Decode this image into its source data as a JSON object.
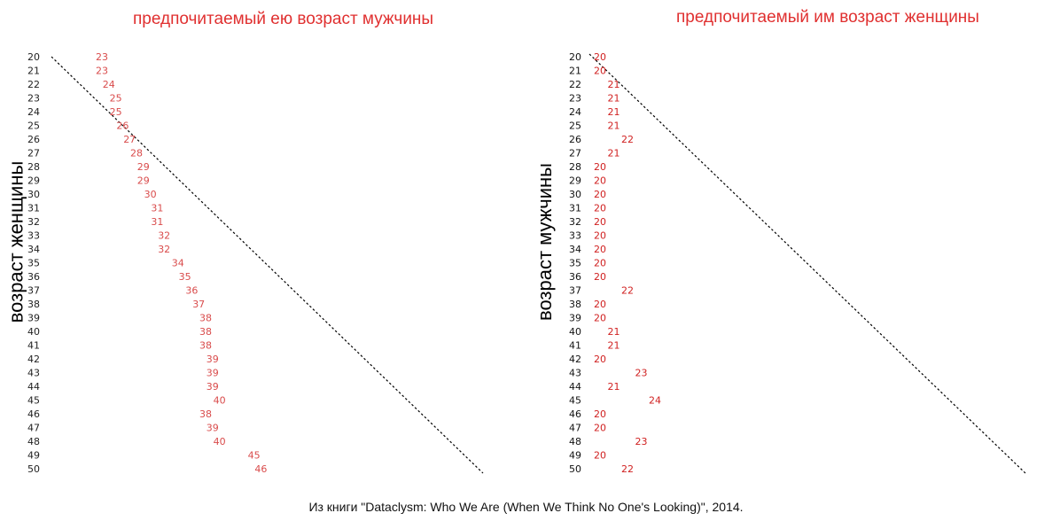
{
  "chart_data": [
    {
      "type": "scatter",
      "title": "предпочитаемый ею возраст мужчины",
      "ylabel": "возраст женщины",
      "y": [
        20,
        21,
        22,
        23,
        24,
        25,
        26,
        27,
        28,
        29,
        30,
        31,
        32,
        33,
        34,
        35,
        36,
        37,
        38,
        39,
        40,
        41,
        42,
        43,
        44,
        45,
        46,
        47,
        48,
        49,
        50
      ],
      "values": [
        23,
        23,
        24,
        25,
        25,
        26,
        27,
        28,
        29,
        29,
        30,
        31,
        31,
        32,
        32,
        34,
        35,
        36,
        37,
        38,
        38,
        38,
        39,
        39,
        39,
        40,
        38,
        39,
        40,
        45,
        46
      ],
      "reference_line": "y = x",
      "colors": {
        "text": "#e03030",
        "values": "#d94b4b",
        "ticks": "#222222",
        "line": "#000000"
      }
    },
    {
      "type": "scatter",
      "title": "предпочитаемый им возраст женщины",
      "ylabel": "возраст мужчины",
      "y": [
        20,
        21,
        22,
        23,
        24,
        25,
        26,
        27,
        28,
        29,
        30,
        31,
        32,
        33,
        34,
        35,
        36,
        37,
        38,
        39,
        40,
        41,
        42,
        43,
        44,
        45,
        46,
        47,
        48,
        49,
        50
      ],
      "values": [
        20,
        20,
        21,
        21,
        21,
        21,
        22,
        21,
        20,
        20,
        20,
        20,
        20,
        20,
        20,
        20,
        20,
        22,
        20,
        20,
        21,
        21,
        20,
        23,
        21,
        24,
        20,
        20,
        23,
        20,
        22
      ],
      "reference_line": "y = x",
      "colors": {
        "text": "#e03030",
        "values": "#d02020",
        "ticks": "#111111",
        "line": "#000000"
      }
    }
  ],
  "caption": "Из книги \"Dataclysm: Who We Are (When We Think No One's Looking)\", 2014."
}
